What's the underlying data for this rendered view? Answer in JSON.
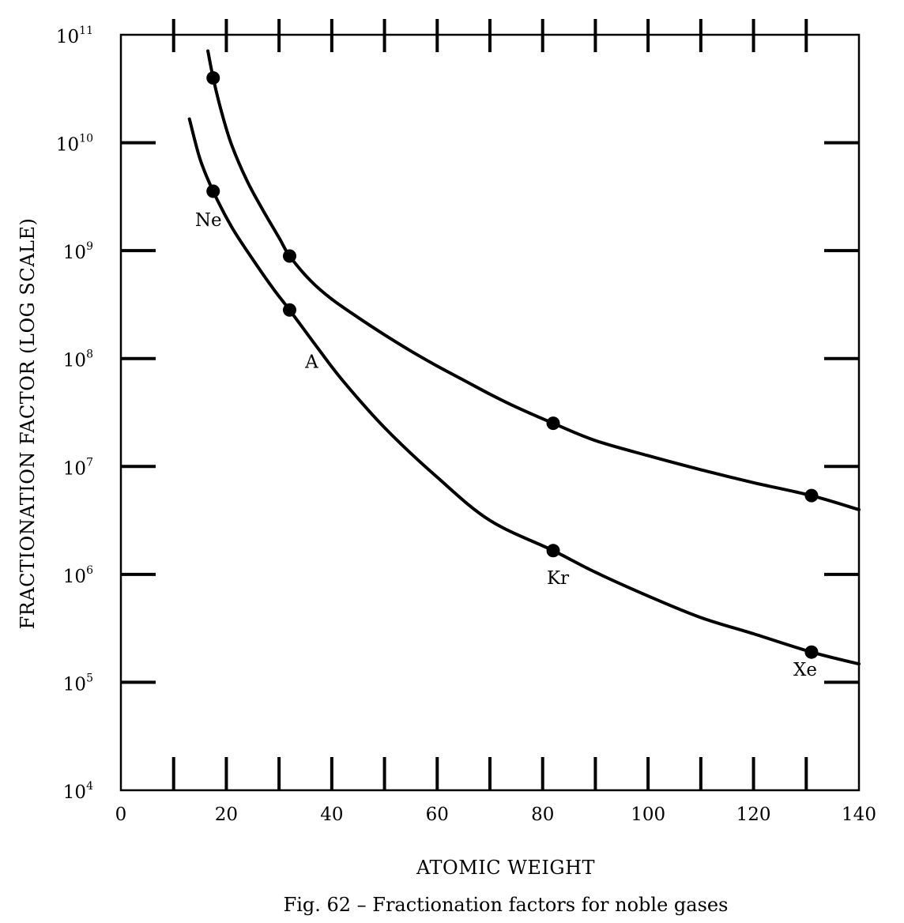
{
  "chart_data": {
    "type": "line",
    "caption": "Fig. 62 – Fractionation factors for noble gases",
    "xlabel": "ATOMIC WEIGHT",
    "ylabel": "FRACTIONATION FACTOR (LOG SCALE)",
    "xlim": [
      0,
      140
    ],
    "ylim_log10": [
      4,
      11
    ],
    "x_ticks": [
      {
        "value": 0,
        "label": "0"
      },
      {
        "value": 20,
        "label": "20"
      },
      {
        "value": 40,
        "label": "40"
      },
      {
        "value": 60,
        "label": "60"
      },
      {
        "value": 80,
        "label": "80"
      },
      {
        "value": 100,
        "label": "100"
      },
      {
        "value": 120,
        "label": "120"
      },
      {
        "value": 140,
        "label": "140"
      }
    ],
    "x_minor_ticks": [
      10,
      20,
      30,
      40,
      50,
      60,
      70,
      80,
      90,
      100,
      110,
      120,
      130
    ],
    "y_ticks": [
      {
        "exp": 4,
        "base": "10",
        "sup": "4"
      },
      {
        "exp": 5,
        "base": "10",
        "sup": "5"
      },
      {
        "exp": 6,
        "base": "10",
        "sup": "6"
      },
      {
        "exp": 7,
        "base": "10",
        "sup": "7"
      },
      {
        "exp": 8,
        "base": "10",
        "sup": "8"
      },
      {
        "exp": 9,
        "base": "10",
        "sup": "9"
      },
      {
        "exp": 10,
        "base": "10",
        "sup": "10"
      },
      {
        "exp": 11,
        "base": "10",
        "sup": "11"
      }
    ],
    "y_side_ticks": [
      5,
      6,
      7,
      8,
      9,
      10
    ],
    "series": [
      {
        "name": "upper",
        "points": [
          {
            "x": 17.5,
            "log10y": 10.6
          },
          {
            "x": 32,
            "log10y": 8.95
          },
          {
            "x": 82,
            "log10y": 7.4
          },
          {
            "x": 131,
            "log10y": 6.73
          }
        ],
        "curve": [
          {
            "x": 16.5,
            "log10y": 10.85
          },
          {
            "x": 17.5,
            "log10y": 10.6
          },
          {
            "x": 19,
            "log10y": 10.3
          },
          {
            "x": 21,
            "log10y": 9.98
          },
          {
            "x": 24,
            "log10y": 9.64
          },
          {
            "x": 27,
            "log10y": 9.37
          },
          {
            "x": 30,
            "log10y": 9.12
          },
          {
            "x": 32,
            "log10y": 8.95
          },
          {
            "x": 36,
            "log10y": 8.72
          },
          {
            "x": 40,
            "log10y": 8.55
          },
          {
            "x": 45,
            "log10y": 8.38
          },
          {
            "x": 50,
            "log10y": 8.22
          },
          {
            "x": 55,
            "log10y": 8.07
          },
          {
            "x": 60,
            "log10y": 7.93
          },
          {
            "x": 65,
            "log10y": 7.8
          },
          {
            "x": 70,
            "log10y": 7.67
          },
          {
            "x": 75,
            "log10y": 7.55
          },
          {
            "x": 82,
            "log10y": 7.4
          },
          {
            "x": 90,
            "log10y": 7.24
          },
          {
            "x": 100,
            "log10y": 7.1
          },
          {
            "x": 110,
            "log10y": 6.97
          },
          {
            "x": 120,
            "log10y": 6.85
          },
          {
            "x": 131,
            "log10y": 6.73
          },
          {
            "x": 140,
            "log10y": 6.6
          }
        ]
      },
      {
        "name": "lower",
        "points": [
          {
            "x": 17.5,
            "log10y": 9.55,
            "label": "Ne"
          },
          {
            "x": 32,
            "log10y": 8.45,
            "label": "A"
          },
          {
            "x": 82,
            "log10y": 6.22,
            "label": "Kr"
          },
          {
            "x": 131,
            "log10y": 5.28,
            "label": "Xe"
          }
        ],
        "curve": [
          {
            "x": 13,
            "log10y": 10.22
          },
          {
            "x": 15,
            "log10y": 9.85
          },
          {
            "x": 17.5,
            "log10y": 9.55
          },
          {
            "x": 21,
            "log10y": 9.22
          },
          {
            "x": 25,
            "log10y": 8.92
          },
          {
            "x": 29,
            "log10y": 8.64
          },
          {
            "x": 32,
            "log10y": 8.45
          },
          {
            "x": 37,
            "log10y": 8.12
          },
          {
            "x": 42,
            "log10y": 7.8
          },
          {
            "x": 50,
            "log10y": 7.36
          },
          {
            "x": 60,
            "log10y": 6.9
          },
          {
            "x": 70,
            "log10y": 6.5
          },
          {
            "x": 82,
            "log10y": 6.22
          },
          {
            "x": 90,
            "log10y": 6.02
          },
          {
            "x": 100,
            "log10y": 5.8
          },
          {
            "x": 110,
            "log10y": 5.6
          },
          {
            "x": 120,
            "log10y": 5.45
          },
          {
            "x": 131,
            "log10y": 5.28
          },
          {
            "x": 140,
            "log10y": 5.17
          }
        ]
      }
    ]
  }
}
